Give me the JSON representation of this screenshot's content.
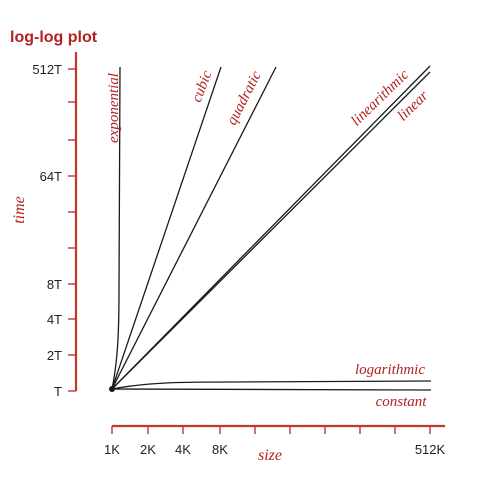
{
  "chart_data": {
    "type": "line",
    "title": "log-log plot",
    "xlabel": "size",
    "ylabel": "time",
    "x_scale": "log",
    "y_scale": "log",
    "x_ticks": [
      "1K",
      "2K",
      "4K",
      "8K",
      "512K"
    ],
    "y_ticks": [
      "T",
      "2T",
      "4T",
      "8T",
      "64T",
      "512T"
    ],
    "series": [
      {
        "name": "exponential",
        "description": "rises almost vertically just right of 1K"
      },
      {
        "name": "cubic",
        "slope": 3
      },
      {
        "name": "quadratic",
        "slope": 2
      },
      {
        "name": "linearithmic",
        "slope": 1.05
      },
      {
        "name": "linear",
        "slope": 1
      },
      {
        "name": "logarithmic",
        "description": "rises slightly from T, then nearly flat"
      },
      {
        "name": "constant",
        "value": "T"
      }
    ],
    "colors": {
      "accent": "#b22222",
      "axis": "#c0392b",
      "curve": "#1a1a1a"
    }
  }
}
